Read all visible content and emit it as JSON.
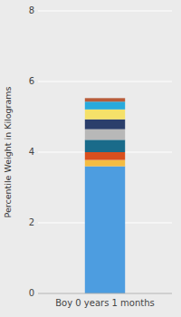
{
  "chart_data": {
    "type": "bar",
    "stacked": true,
    "y_label": "Percentile Weight in Kilograms",
    "categories": [
      "Boy 0 years 1 months"
    ],
    "series": [
      {
        "color": "#4d9de0",
        "values": [
          3.6
        ]
      },
      {
        "color": "#f5bc42",
        "values": [
          0.18
        ]
      },
      {
        "color": "#d94f1e",
        "values": [
          0.22
        ]
      },
      {
        "color": "#1a6b8a",
        "values": [
          0.35
        ]
      },
      {
        "color": "#b8b8b8",
        "values": [
          0.3
        ]
      },
      {
        "color": "#2b3f6b",
        "values": [
          0.28
        ]
      },
      {
        "color": "#f5e169",
        "values": [
          0.28
        ]
      },
      {
        "color": "#29aadc",
        "values": [
          0.22
        ]
      },
      {
        "color": "#b85c3a",
        "values": [
          0.1
        ]
      }
    ],
    "ylim": [
      0,
      8
    ],
    "yticks": [
      0,
      2,
      4,
      6,
      8
    ],
    "grid": true
  }
}
